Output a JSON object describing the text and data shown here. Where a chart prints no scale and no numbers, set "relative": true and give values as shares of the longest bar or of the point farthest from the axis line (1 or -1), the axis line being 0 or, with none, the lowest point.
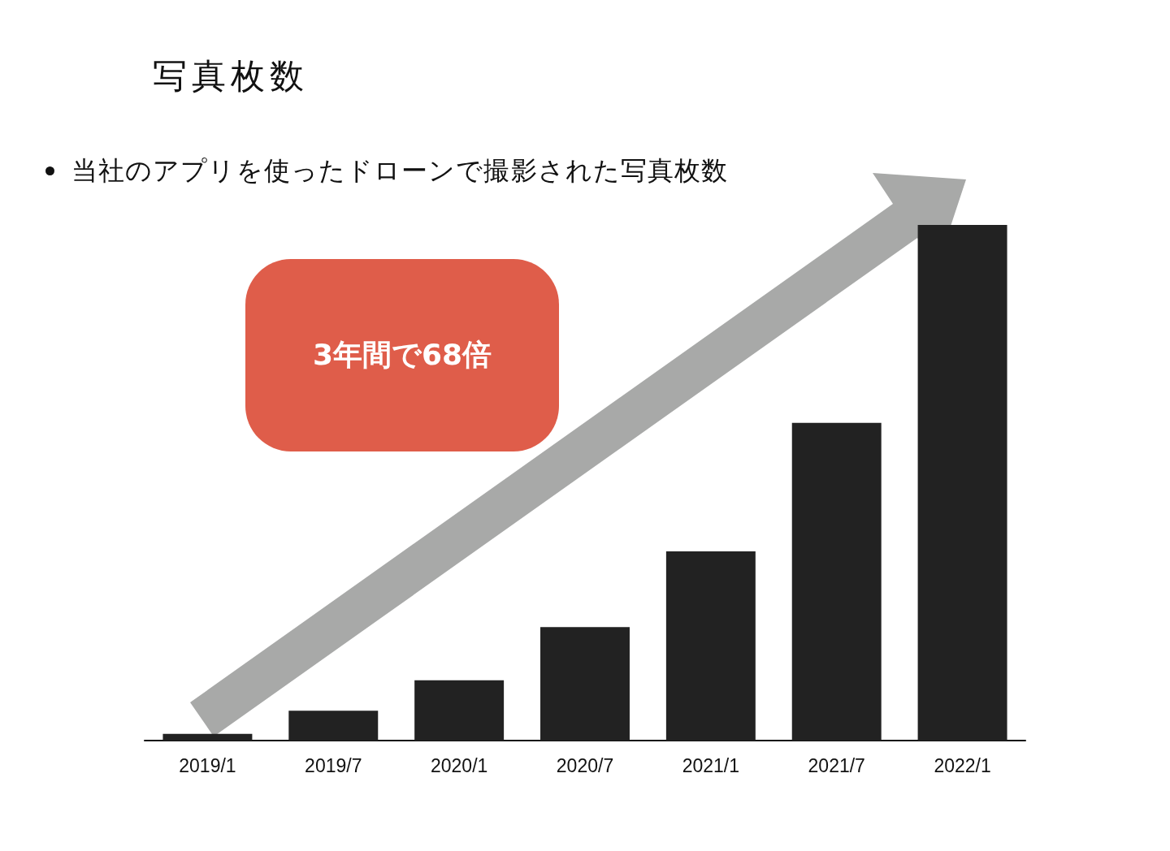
{
  "chart_data": {
    "type": "bar",
    "title": "写真枚数",
    "subtitle": "当社のアプリを使ったドローンで撮影された写真枚数",
    "categories": [
      "2019/1",
      "2019/7",
      "2020/1",
      "2020/7",
      "2021/1",
      "2021/7",
      "2022/1"
    ],
    "values": [
      0.013,
      0.058,
      0.117,
      0.22,
      0.367,
      0.616,
      1
    ],
    "color": "#222222",
    "relative": true,
    "annotations": [
      "3年間で68倍"
    ]
  }
}
